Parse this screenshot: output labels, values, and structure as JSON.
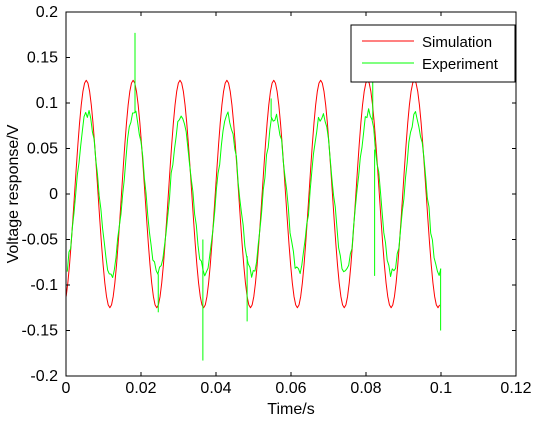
{
  "chart_data": {
    "type": "line",
    "title": "",
    "xlabel": "Time/s",
    "ylabel": "Voltage response/V",
    "xlim": [
      0,
      0.12
    ],
    "ylim": [
      -0.2,
      0.2
    ],
    "x_ticks": [
      "0",
      "0.02",
      "0.04",
      "0.06",
      "0.08",
      "0.1",
      "0.12"
    ],
    "y_ticks": [
      "0.2",
      "0.15",
      "0.1",
      "0.05",
      "0",
      "-0.05",
      "-0.1",
      "-0.15",
      "-0.2"
    ],
    "grid": false,
    "legend_position": "top-right",
    "series": [
      {
        "name": "Simulation",
        "color": "#ff0000",
        "x_range": [
          0,
          0.1
        ],
        "frequency_hz": 80,
        "amplitude": 0.125,
        "peaks": [
          {
            "x": 0.0054,
            "y": 0.125
          },
          {
            "x": 0.0179,
            "y": 0.125
          },
          {
            "x": 0.0304,
            "y": 0.125
          },
          {
            "x": 0.0429,
            "y": 0.125
          },
          {
            "x": 0.0554,
            "y": 0.125
          },
          {
            "x": 0.0679,
            "y": 0.125
          },
          {
            "x": 0.0804,
            "y": 0.125
          },
          {
            "x": 0.0929,
            "y": 0.125
          }
        ],
        "troughs": [
          {
            "x": 0.0117,
            "y": -0.125
          },
          {
            "x": 0.0242,
            "y": -0.125
          },
          {
            "x": 0.0367,
            "y": -0.125
          },
          {
            "x": 0.0492,
            "y": -0.125
          },
          {
            "x": 0.0617,
            "y": -0.125
          },
          {
            "x": 0.0742,
            "y": -0.125
          },
          {
            "x": 0.0867,
            "y": -0.125
          },
          {
            "x": 0.0992,
            "y": -0.125
          }
        ]
      },
      {
        "name": "Experiment",
        "color": "#00ff00",
        "x_range": [
          0,
          0.1
        ],
        "frequency_hz": 80,
        "amplitude": 0.088,
        "peaks": [
          {
            "x": 0.0057,
            "y": 0.088
          },
          {
            "x": 0.0182,
            "y": 0.088
          },
          {
            "x": 0.0307,
            "y": 0.087
          },
          {
            "x": 0.0432,
            "y": 0.085
          },
          {
            "x": 0.0557,
            "y": 0.087
          },
          {
            "x": 0.0682,
            "y": 0.088
          },
          {
            "x": 0.0807,
            "y": 0.088
          },
          {
            "x": 0.0932,
            "y": 0.085
          }
        ],
        "troughs": [
          {
            "x": 0.012,
            "y": -0.088
          },
          {
            "x": 0.0245,
            "y": -0.087
          },
          {
            "x": 0.037,
            "y": -0.085
          },
          {
            "x": 0.0495,
            "y": -0.088
          },
          {
            "x": 0.062,
            "y": -0.086
          },
          {
            "x": 0.0745,
            "y": -0.087
          },
          {
            "x": 0.087,
            "y": -0.088
          },
          {
            "x": 0.0995,
            "y": -0.087
          }
        ],
        "spikes": [
          {
            "x": 0.0184,
            "y": 0.177
          },
          {
            "x": 0.0365,
            "y": -0.183
          },
          {
            "x": 0.0365,
            "y": -0.05
          },
          {
            "x": 0.0246,
            "y": -0.13
          },
          {
            "x": 0.0483,
            "y": -0.14
          },
          {
            "x": 0.0547,
            "y": 0.105
          },
          {
            "x": 0.0818,
            "y": 0.135
          },
          {
            "x": 0.0823,
            "y": -0.09
          },
          {
            "x": 0.0999,
            "y": -0.15
          }
        ]
      }
    ]
  }
}
